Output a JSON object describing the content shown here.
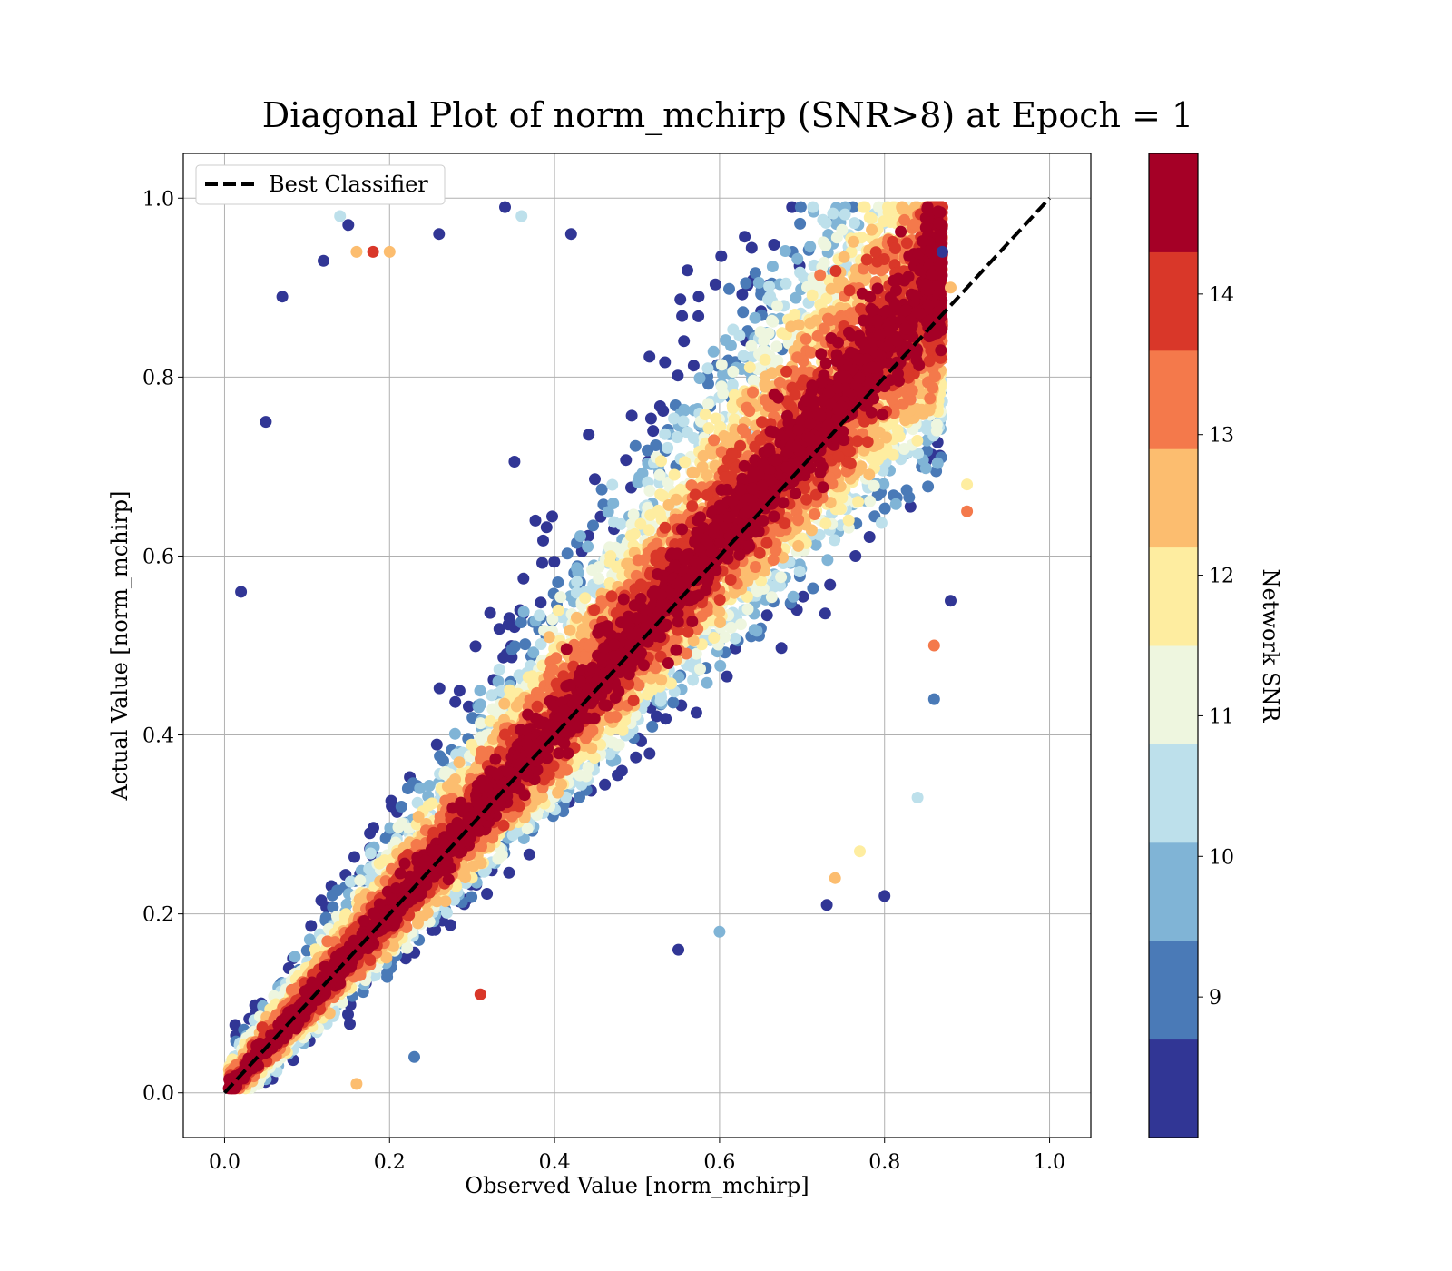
{
  "chart_data": {
    "type": "scatter",
    "title": "Diagonal Plot of norm_mchirp (SNR>8) at Epoch = 1",
    "xlabel": "Observed Value [norm_mchirp]",
    "ylabel": "Actual Value [norm_mchirp]",
    "xlim": [
      -0.05,
      1.05
    ],
    "ylim": [
      -0.05,
      1.05
    ],
    "xticks": [
      "0.0",
      "0.2",
      "0.4",
      "0.6",
      "0.8",
      "1.0"
    ],
    "yticks": [
      "0.0",
      "0.2",
      "0.4",
      "0.6",
      "0.8",
      "1.0"
    ],
    "grid": true,
    "legend": {
      "position": "top-left",
      "entries": [
        "Best Classifier"
      ]
    },
    "reference_line": {
      "name": "Best Classifier",
      "x": [
        0.0,
        1.0
      ],
      "y": [
        0.0,
        1.0
      ],
      "style": "dashed",
      "color": "#000000"
    },
    "colorbar": {
      "label": "Network SNR",
      "range": [
        8,
        15
      ],
      "ticks": [
        "9",
        "10",
        "11",
        "12",
        "13",
        "14"
      ],
      "bins": [
        {
          "from": 8.0,
          "to": 8.7,
          "color": "#313695"
        },
        {
          "from": 8.7,
          "to": 9.4,
          "color": "#4a7ab7"
        },
        {
          "from": 9.4,
          "to": 10.1,
          "color": "#80b4d6"
        },
        {
          "from": 10.1,
          "to": 10.8,
          "color": "#bde0eb"
        },
        {
          "from": 10.8,
          "to": 11.5,
          "color": "#eef6df"
        },
        {
          "from": 11.5,
          "to": 12.2,
          "color": "#feeda0"
        },
        {
          "from": 12.2,
          "to": 12.9,
          "color": "#fcbd6f"
        },
        {
          "from": 12.9,
          "to": 13.6,
          "color": "#f4794b"
        },
        {
          "from": 13.6,
          "to": 14.3,
          "color": "#d93729"
        },
        {
          "from": 14.3,
          "to": 15.0,
          "color": "#a50026"
        }
      ]
    },
    "points": [
      {
        "x": 0.05,
        "y": 0.75,
        "snr": 8.3
      },
      {
        "x": 0.02,
        "y": 0.56,
        "snr": 8.3
      },
      {
        "x": 0.07,
        "y": 0.89,
        "snr": 8.3
      },
      {
        "x": 0.14,
        "y": 0.98,
        "snr": 10.5
      },
      {
        "x": 0.15,
        "y": 0.97,
        "snr": 8.3
      },
      {
        "x": 0.16,
        "y": 0.01,
        "snr": 12.6
      },
      {
        "x": 0.34,
        "y": 0.99,
        "snr": 8.3
      },
      {
        "x": 0.26,
        "y": 0.96,
        "snr": 8.3
      },
      {
        "x": 0.55,
        "y": 0.16,
        "snr": 8.3
      },
      {
        "x": 0.73,
        "y": 0.21,
        "snr": 8.3
      },
      {
        "x": 0.6,
        "y": 0.18,
        "snr": 9.8
      },
      {
        "x": 0.86,
        "y": 0.44,
        "snr": 9.0
      },
      {
        "x": 0.88,
        "y": 0.55,
        "snr": 8.3
      },
      {
        "x": 0.9,
        "y": 0.68,
        "snr": 11.9
      },
      {
        "x": 0.9,
        "y": 0.65,
        "snr": 13.2
      },
      {
        "x": 0.86,
        "y": 0.5,
        "snr": 13.2
      },
      {
        "x": 0.74,
        "y": 0.24,
        "snr": 12.6
      },
      {
        "x": 0.23,
        "y": 0.04,
        "snr": 9.0
      },
      {
        "x": 0.31,
        "y": 0.11,
        "snr": 14.0
      },
      {
        "x": 0.88,
        "y": 0.9,
        "snr": 12.6
      },
      {
        "x": 0.87,
        "y": 0.94,
        "snr": 8.3
      },
      {
        "x": 0.18,
        "y": 0.94,
        "snr": 14.0
      },
      {
        "x": 0.2,
        "y": 0.94,
        "snr": 12.6
      },
      {
        "x": 0.42,
        "y": 0.96,
        "snr": 8.3
      },
      {
        "x": 0.12,
        "y": 0.93,
        "snr": 8.3
      },
      {
        "x": 0.36,
        "y": 0.98,
        "snr": 10.5
      },
      {
        "x": 0.16,
        "y": 0.94,
        "snr": 12.6
      },
      {
        "x": 0.84,
        "y": 0.33,
        "snr": 10.5
      },
      {
        "x": 0.8,
        "y": 0.22,
        "snr": 8.3
      },
      {
        "x": 0.77,
        "y": 0.27,
        "snr": 11.9
      }
    ]
  }
}
